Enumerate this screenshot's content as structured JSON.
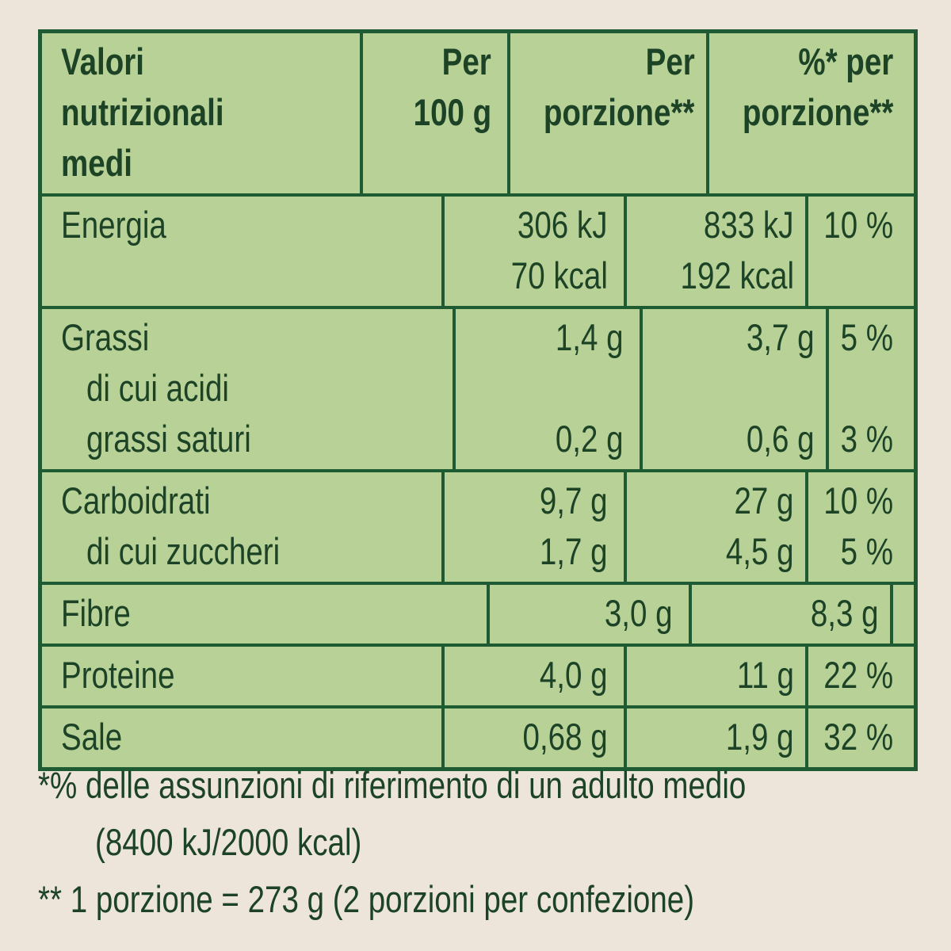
{
  "table": {
    "header": [
      [
        "Valori",
        "nutrizionali",
        "medi"
      ],
      [
        "Per",
        "100 g"
      ],
      [
        "Per",
        "porzione**"
      ],
      [
        "%* per",
        "porzione**"
      ]
    ],
    "rows": [
      [
        {
          "label": "Energia",
          "per_100g": "306 kJ",
          "per_portion": "833 kJ",
          "percent": "10 %"
        },
        {
          "per_100g": "70 kcal",
          "per_portion": "192 kcal"
        }
      ],
      [
        {
          "label": "Grassi",
          "per_100g": "1,4 g",
          "per_portion": "3,7 g",
          "percent": "5 %"
        },
        {
          "label": "di cui acidi"
        },
        {
          "label": "grassi saturi",
          "per_100g": "0,2 g",
          "per_portion": "0,6 g",
          "percent": "3 %"
        }
      ],
      [
        {
          "label": "Carboidrati",
          "per_100g": "9,7 g",
          "per_portion": "27 g",
          "percent": "10 %"
        },
        {
          "label": "di cui zuccheri",
          "per_100g": "1,7 g",
          "per_portion": "4,5 g",
          "percent": "5 %"
        }
      ],
      [
        {
          "label": "Fibre",
          "per_100g": "3,0 g",
          "per_portion": "8,3 g"
        }
      ],
      [
        {
          "label": "Proteine",
          "per_100g": "4,0 g",
          "per_portion": "11 g",
          "percent": "22 %"
        }
      ],
      [
        {
          "label": "Sale",
          "per_100g": "0,68 g",
          "per_portion": "1,9 g",
          "percent": "32 %"
        }
      ]
    ]
  },
  "footnotes": [
    [
      "*% delle assunzioni di riferimento di un adulto medio",
      "(8400 kJ/2000 kcal)"
    ],
    [
      "** 1 porzione = 273 g (2 porzioni per confezione)"
    ]
  ]
}
